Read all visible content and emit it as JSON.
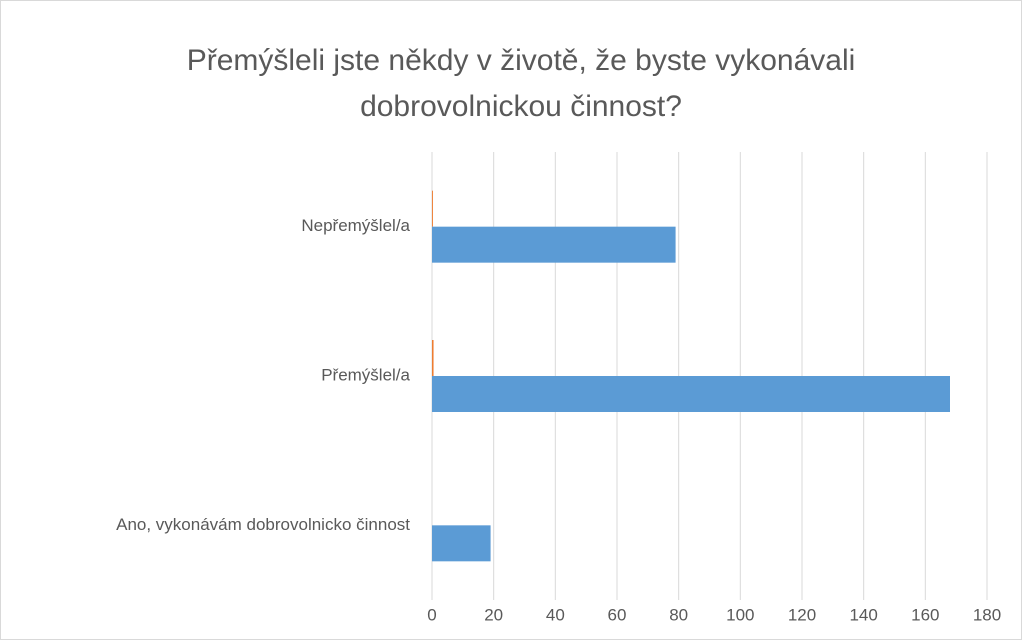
{
  "chart_data": {
    "type": "barh",
    "title": [
      "Přemýšleli jste někdy v životě, že byste vykonávali",
      "dobrovolnickou činnost?"
    ],
    "categories": [
      "Nepřemýšlel/a",
      "Přemýšlel/a",
      "Ano, vykonávám dobrovolnicko činnost"
    ],
    "series": [
      {
        "color": "#ed7d31",
        "values": [
          0.3,
          0.5,
          0
        ]
      },
      {
        "color": "#5b9bd5",
        "values": [
          79,
          168,
          19
        ]
      }
    ],
    "xlim": [
      0,
      180
    ],
    "xticks": [
      0,
      20,
      40,
      60,
      80,
      100,
      120,
      140,
      160,
      180
    ],
    "grid": true
  }
}
